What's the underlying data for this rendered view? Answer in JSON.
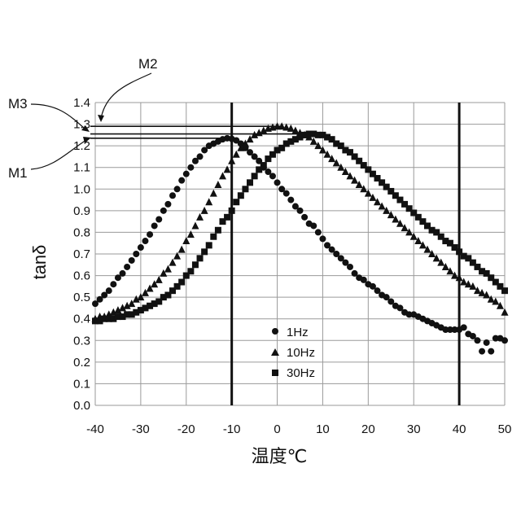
{
  "chart_data": {
    "type": "scatter",
    "title": "",
    "xlabel": "温度℃",
    "ylabel": "tanδ",
    "xlim": [
      -40,
      50
    ],
    "ylim": [
      0.0,
      1.4
    ],
    "x_ticks": [
      -40,
      -30,
      -20,
      -10,
      0,
      10,
      20,
      30,
      40,
      50
    ],
    "y_ticks": [
      0.0,
      0.1,
      0.2,
      0.3,
      0.4,
      0.5,
      0.6,
      0.7,
      0.8,
      0.9,
      1.0,
      1.1,
      1.2,
      1.3,
      1.4
    ],
    "x_tick_labels": [
      "-40",
      "-30",
      "-20",
      "-10",
      "0",
      "10",
      "20",
      "30",
      "40",
      "50"
    ],
    "y_tick_labels": [
      "0.0",
      "0.1",
      "0.2",
      "0.3",
      "0.4",
      "0.5",
      "0.6",
      "0.7",
      "0.8",
      "0.9",
      "1.0",
      "1.1",
      "1.2",
      "1.3",
      "1.4"
    ],
    "grid": true,
    "legend_position": "inside-bottom-center",
    "series": [
      {
        "name": "1Hz",
        "marker": "circle",
        "points": [
          [
            -40,
            0.47
          ],
          [
            -39,
            0.49
          ],
          [
            -38,
            0.51
          ],
          [
            -37,
            0.53
          ],
          [
            -36,
            0.56
          ],
          [
            -35,
            0.59
          ],
          [
            -34,
            0.61
          ],
          [
            -33,
            0.64
          ],
          [
            -32,
            0.67
          ],
          [
            -31,
            0.7
          ],
          [
            -30,
            0.73
          ],
          [
            -29,
            0.76
          ],
          [
            -28,
            0.79
          ],
          [
            -27,
            0.83
          ],
          [
            -26,
            0.86
          ],
          [
            -25,
            0.9
          ],
          [
            -24,
            0.93
          ],
          [
            -23,
            0.97
          ],
          [
            -22,
            1.0
          ],
          [
            -21,
            1.04
          ],
          [
            -20,
            1.07
          ],
          [
            -19,
            1.1
          ],
          [
            -18,
            1.13
          ],
          [
            -17,
            1.15
          ],
          [
            -16,
            1.18
          ],
          [
            -15,
            1.2
          ],
          [
            -14,
            1.21
          ],
          [
            -13,
            1.22
          ],
          [
            -12,
            1.23
          ],
          [
            -11,
            1.235
          ],
          [
            -10,
            1.232
          ],
          [
            -9,
            1.225
          ],
          [
            -8,
            1.21
          ],
          [
            -7,
            1.19
          ],
          [
            -6,
            1.17
          ],
          [
            -5,
            1.15
          ],
          [
            -4,
            1.13
          ],
          [
            -3,
            1.1
          ],
          [
            -2,
            1.08
          ],
          [
            -1,
            1.06
          ],
          [
            0,
            1.03
          ],
          [
            1,
            1.0
          ],
          [
            2,
            0.98
          ],
          [
            3,
            0.95
          ],
          [
            4,
            0.92
          ],
          [
            5,
            0.9
          ],
          [
            6,
            0.87
          ],
          [
            7,
            0.84
          ],
          [
            8,
            0.83
          ],
          [
            9,
            0.8
          ],
          [
            10,
            0.77
          ],
          [
            11,
            0.74
          ],
          [
            12,
            0.72
          ],
          [
            13,
            0.7
          ],
          [
            14,
            0.68
          ],
          [
            15,
            0.66
          ],
          [
            16,
            0.64
          ],
          [
            17,
            0.61
          ],
          [
            18,
            0.59
          ],
          [
            19,
            0.58
          ],
          [
            20,
            0.56
          ],
          [
            21,
            0.55
          ],
          [
            22,
            0.53
          ],
          [
            23,
            0.51
          ],
          [
            24,
            0.5
          ],
          [
            25,
            0.48
          ],
          [
            26,
            0.46
          ],
          [
            27,
            0.45
          ],
          [
            28,
            0.43
          ],
          [
            29,
            0.42
          ],
          [
            30,
            0.42
          ],
          [
            31,
            0.41
          ],
          [
            32,
            0.4
          ],
          [
            33,
            0.39
          ],
          [
            34,
            0.38
          ],
          [
            35,
            0.37
          ],
          [
            36,
            0.36
          ],
          [
            37,
            0.35
          ],
          [
            38,
            0.35
          ],
          [
            39,
            0.35
          ],
          [
            40,
            0.35
          ],
          [
            41,
            0.36
          ],
          [
            42,
            0.33
          ],
          [
            43,
            0.32
          ],
          [
            44,
            0.3
          ],
          [
            45,
            0.25
          ],
          [
            46,
            0.29
          ],
          [
            47,
            0.25
          ],
          [
            48,
            0.31
          ],
          [
            49,
            0.31
          ],
          [
            50,
            0.3
          ]
        ]
      },
      {
        "name": "10Hz",
        "marker": "triangle",
        "points": [
          [
            -40,
            0.4
          ],
          [
            -39,
            0.41
          ],
          [
            -38,
            0.41
          ],
          [
            -37,
            0.42
          ],
          [
            -36,
            0.43
          ],
          [
            -35,
            0.44
          ],
          [
            -34,
            0.45
          ],
          [
            -33,
            0.46
          ],
          [
            -32,
            0.47
          ],
          [
            -31,
            0.49
          ],
          [
            -30,
            0.5
          ],
          [
            -29,
            0.52
          ],
          [
            -28,
            0.54
          ],
          [
            -27,
            0.56
          ],
          [
            -26,
            0.58
          ],
          [
            -25,
            0.61
          ],
          [
            -24,
            0.63
          ],
          [
            -23,
            0.66
          ],
          [
            -22,
            0.69
          ],
          [
            -21,
            0.72
          ],
          [
            -20,
            0.76
          ],
          [
            -19,
            0.79
          ],
          [
            -18,
            0.83
          ],
          [
            -17,
            0.87
          ],
          [
            -16,
            0.9
          ],
          [
            -15,
            0.94
          ],
          [
            -14,
            0.98
          ],
          [
            -13,
            1.02
          ],
          [
            -12,
            1.06
          ],
          [
            -11,
            1.09
          ],
          [
            -10,
            1.13
          ],
          [
            -9,
            1.16
          ],
          [
            -8,
            1.19
          ],
          [
            -7,
            1.21
          ],
          [
            -6,
            1.23
          ],
          [
            -5,
            1.25
          ],
          [
            -4,
            1.26
          ],
          [
            -3,
            1.27
          ],
          [
            -2,
            1.28
          ],
          [
            -1,
            1.285
          ],
          [
            0,
            1.29
          ],
          [
            1,
            1.29
          ],
          [
            2,
            1.285
          ],
          [
            3,
            1.28
          ],
          [
            4,
            1.27
          ],
          [
            5,
            1.26
          ],
          [
            6,
            1.25
          ],
          [
            7,
            1.24
          ],
          [
            8,
            1.22
          ],
          [
            9,
            1.2
          ],
          [
            10,
            1.18
          ],
          [
            11,
            1.16
          ],
          [
            12,
            1.14
          ],
          [
            13,
            1.12
          ],
          [
            14,
            1.1
          ],
          [
            15,
            1.08
          ],
          [
            16,
            1.06
          ],
          [
            17,
            1.04
          ],
          [
            18,
            1.02
          ],
          [
            19,
            1.0
          ],
          [
            20,
            0.98
          ],
          [
            21,
            0.96
          ],
          [
            22,
            0.94
          ],
          [
            23,
            0.92
          ],
          [
            24,
            0.9
          ],
          [
            25,
            0.88
          ],
          [
            26,
            0.86
          ],
          [
            27,
            0.84
          ],
          [
            28,
            0.82
          ],
          [
            29,
            0.8
          ],
          [
            30,
            0.78
          ],
          [
            31,
            0.76
          ],
          [
            32,
            0.74
          ],
          [
            33,
            0.72
          ],
          [
            34,
            0.7
          ],
          [
            35,
            0.68
          ],
          [
            36,
            0.66
          ],
          [
            37,
            0.64
          ],
          [
            38,
            0.62
          ],
          [
            39,
            0.6
          ],
          [
            40,
            0.59
          ],
          [
            41,
            0.57
          ],
          [
            42,
            0.56
          ],
          [
            43,
            0.55
          ],
          [
            44,
            0.53
          ],
          [
            45,
            0.52
          ],
          [
            46,
            0.51
          ],
          [
            47,
            0.49
          ],
          [
            48,
            0.48
          ],
          [
            49,
            0.46
          ],
          [
            50,
            0.43
          ]
        ]
      },
      {
        "name": "30Hz",
        "marker": "square",
        "points": [
          [
            -40,
            0.39
          ],
          [
            -39,
            0.39
          ],
          [
            -38,
            0.4
          ],
          [
            -37,
            0.4
          ],
          [
            -36,
            0.4
          ],
          [
            -35,
            0.41
          ],
          [
            -34,
            0.41
          ],
          [
            -33,
            0.42
          ],
          [
            -32,
            0.42
          ],
          [
            -31,
            0.43
          ],
          [
            -30,
            0.44
          ],
          [
            -29,
            0.45
          ],
          [
            -28,
            0.46
          ],
          [
            -27,
            0.47
          ],
          [
            -26,
            0.48
          ],
          [
            -25,
            0.5
          ],
          [
            -24,
            0.51
          ],
          [
            -23,
            0.53
          ],
          [
            -22,
            0.55
          ],
          [
            -21,
            0.57
          ],
          [
            -20,
            0.6
          ],
          [
            -19,
            0.62
          ],
          [
            -18,
            0.65
          ],
          [
            -17,
            0.68
          ],
          [
            -16,
            0.71
          ],
          [
            -15,
            0.74
          ],
          [
            -14,
            0.78
          ],
          [
            -13,
            0.81
          ],
          [
            -12,
            0.85
          ],
          [
            -11,
            0.87
          ],
          [
            -10,
            0.9
          ],
          [
            -9,
            0.94
          ],
          [
            -8,
            0.97
          ],
          [
            -7,
            1.0
          ],
          [
            -6,
            1.03
          ],
          [
            -5,
            1.06
          ],
          [
            -4,
            1.09
          ],
          [
            -3,
            1.11
          ],
          [
            -2,
            1.14
          ],
          [
            -1,
            1.16
          ],
          [
            0,
            1.18
          ],
          [
            1,
            1.19
          ],
          [
            2,
            1.21
          ],
          [
            3,
            1.22
          ],
          [
            4,
            1.23
          ],
          [
            5,
            1.24
          ],
          [
            6,
            1.25
          ],
          [
            7,
            1.255
          ],
          [
            8,
            1.255
          ],
          [
            9,
            1.25
          ],
          [
            10,
            1.25
          ],
          [
            11,
            1.24
          ],
          [
            12,
            1.23
          ],
          [
            13,
            1.21
          ],
          [
            14,
            1.2
          ],
          [
            15,
            1.18
          ],
          [
            16,
            1.17
          ],
          [
            17,
            1.15
          ],
          [
            18,
            1.13
          ],
          [
            19,
            1.11
          ],
          [
            20,
            1.09
          ],
          [
            21,
            1.07
          ],
          [
            22,
            1.05
          ],
          [
            23,
            1.03
          ],
          [
            24,
            1.01
          ],
          [
            25,
            0.99
          ],
          [
            26,
            0.97
          ],
          [
            27,
            0.95
          ],
          [
            28,
            0.93
          ],
          [
            29,
            0.91
          ],
          [
            30,
            0.89
          ],
          [
            31,
            0.87
          ],
          [
            32,
            0.85
          ],
          [
            33,
            0.83
          ],
          [
            34,
            0.81
          ],
          [
            35,
            0.8
          ],
          [
            36,
            0.78
          ],
          [
            37,
            0.76
          ],
          [
            38,
            0.75
          ],
          [
            39,
            0.73
          ],
          [
            40,
            0.71
          ],
          [
            41,
            0.69
          ],
          [
            42,
            0.68
          ],
          [
            43,
            0.66
          ],
          [
            44,
            0.64
          ],
          [
            45,
            0.62
          ],
          [
            46,
            0.61
          ],
          [
            47,
            0.59
          ],
          [
            48,
            0.57
          ],
          [
            49,
            0.55
          ],
          [
            50,
            0.53
          ]
        ]
      }
    ],
    "vertical_lines": [
      -10,
      40
    ],
    "reference_lines": [
      {
        "label": "M1",
        "y": 1.235,
        "x_end": -10
      },
      {
        "label": "M2",
        "y": 1.29,
        "x_end": 1
      },
      {
        "label": "M3",
        "y": 1.255,
        "x_end": 8
      }
    ],
    "annotations": [
      "M1",
      "M2",
      "M3"
    ]
  }
}
